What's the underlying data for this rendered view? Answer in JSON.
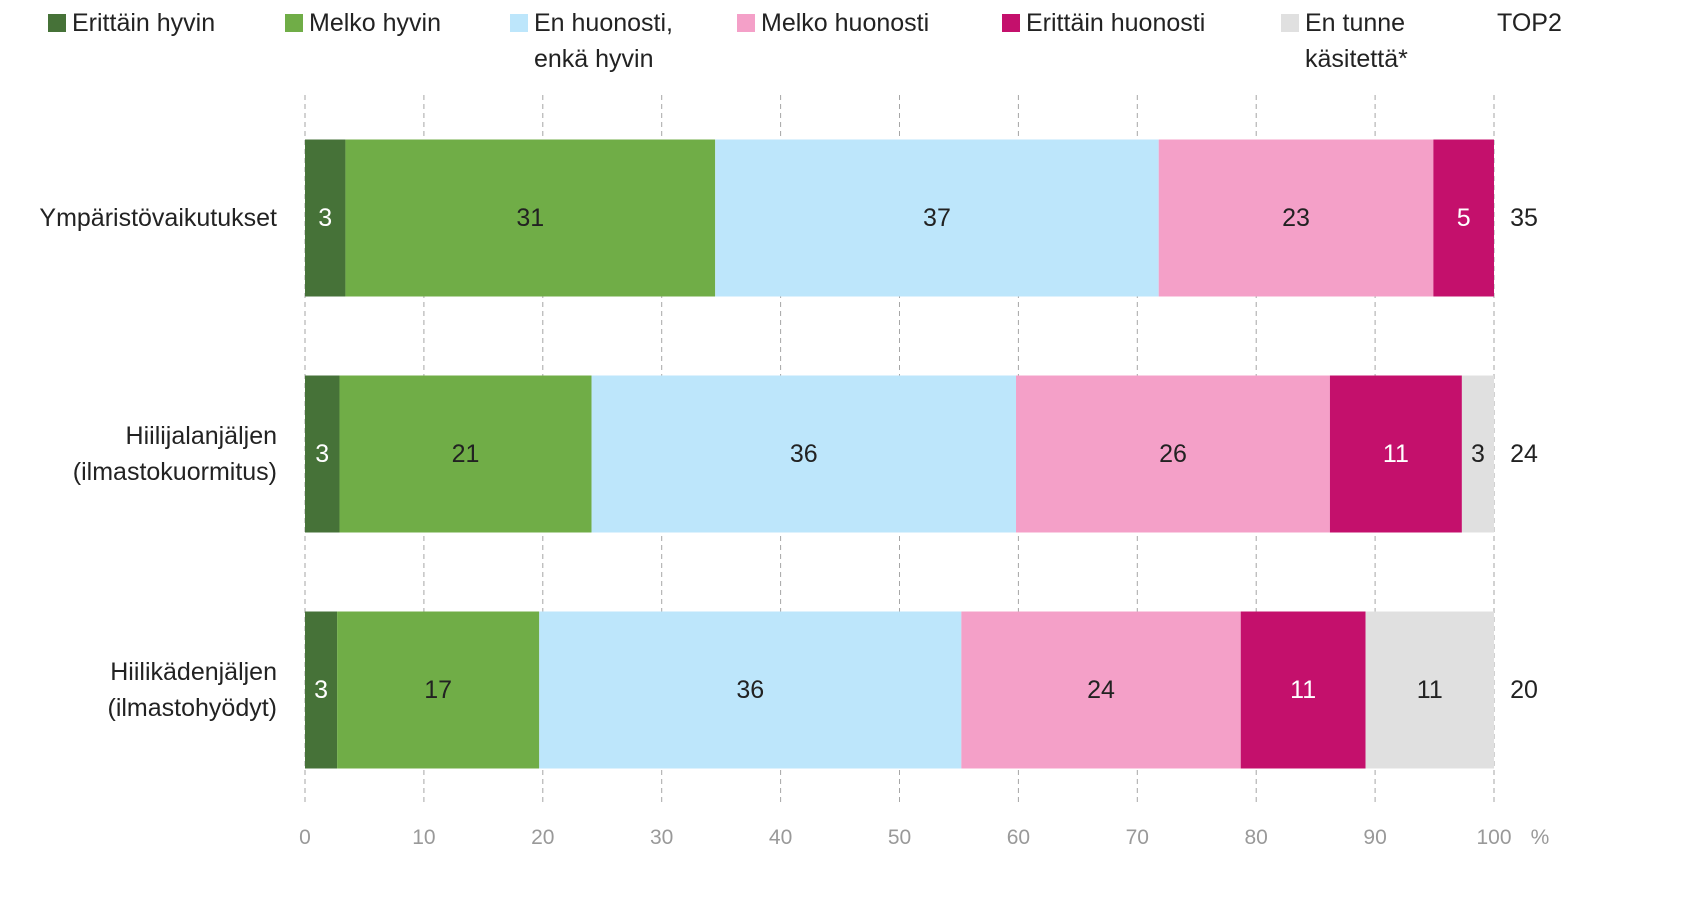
{
  "chart_data": {
    "type": "stacked_barh",
    "categories": [
      "Ympäristövaikutukset",
      "Hiilijalanjäljen\n(ilmastokuormitus)",
      "Hiilikädenjäljen\n(ilmastohyödyt)"
    ],
    "series": [
      {
        "name": "Erittäin hyvin",
        "color": "#467238",
        "label_color": "#ffffff",
        "values": [
          3.4,
          2.9,
          2.7
        ],
        "value_labels": [
          "3",
          "3",
          "3"
        ]
      },
      {
        "name": "Melko hyvin",
        "color": "#70ad47",
        "label_color": "#222222",
        "values": [
          31.1,
          21.2,
          17.0
        ],
        "value_labels": [
          "31",
          "21",
          "17"
        ]
      },
      {
        "name": "En huonosti,\nenkä hyvin",
        "color": "#bde6fb",
        "label_color": "#222222",
        "values": [
          37.3,
          35.7,
          35.5
        ],
        "value_labels": [
          "37",
          "36",
          "36"
        ]
      },
      {
        "name": "Melko huonosti",
        "color": "#f4a0c8",
        "label_color": "#222222",
        "values": [
          23.1,
          26.4,
          23.5
        ],
        "value_labels": [
          "23",
          "26",
          "24"
        ]
      },
      {
        "name": "Erittäin huonosti",
        "color": "#c4106c",
        "label_color": "#ffffff",
        "values": [
          5.1,
          11.1,
          10.5
        ],
        "value_labels": [
          "5",
          "11",
          "11"
        ]
      },
      {
        "name": "En tunne\nkäsitettä*",
        "color": "#e0e0e0",
        "label_color": "#222222",
        "values": [
          0,
          2.7,
          10.8
        ],
        "value_labels": [
          null,
          "3",
          "11"
        ]
      }
    ],
    "top2": {
      "label": "TOP2",
      "values": [
        35,
        24,
        20
      ]
    },
    "xlabel": "%",
    "xlim": [
      0,
      100
    ],
    "xticks": [
      0,
      10,
      20,
      30,
      40,
      50,
      60,
      70,
      80,
      90,
      100
    ],
    "grid": true
  }
}
